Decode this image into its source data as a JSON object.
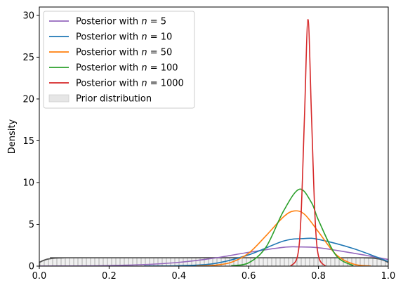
{
  "chart_data": {
    "type": "line",
    "title": "",
    "xlabel": "",
    "ylabel": "Density",
    "xlim": [
      0.0,
      1.0
    ],
    "ylim": [
      0,
      31
    ],
    "xticks": [
      0.0,
      0.2,
      0.4,
      0.6,
      0.8,
      1.0
    ],
    "xtick_labels": [
      "0.0",
      "0.2",
      "0.4",
      "0.6",
      "0.8",
      "1.0"
    ],
    "yticks": [
      0,
      5,
      10,
      15,
      20,
      25,
      30
    ],
    "ytick_labels": [
      "0",
      "5",
      "10",
      "15",
      "20",
      "25",
      "30"
    ],
    "grid": false,
    "legend_position": "top-left",
    "series": [
      {
        "name_prefix": "Posterior with ",
        "n_symbol": "n",
        "n_value": "= 5",
        "color": "#9467bd",
        "peak_x": 0.74,
        "peak_y": 2.3,
        "x": [
          0.0,
          0.1,
          0.2,
          0.3,
          0.4,
          0.5,
          0.6,
          0.7,
          0.74,
          0.8,
          0.9,
          1.0
        ],
        "y": [
          0.01,
          0.02,
          0.06,
          0.18,
          0.45,
          0.95,
          1.65,
          2.25,
          2.3,
          2.2,
          1.55,
          0.8
        ]
      },
      {
        "name_prefix": "Posterior with ",
        "n_symbol": "n",
        "n_value": "= 10",
        "color": "#1f77b4",
        "peak_x": 0.76,
        "peak_y": 3.3,
        "x": [
          0.3,
          0.4,
          0.5,
          0.6,
          0.7,
          0.76,
          0.8,
          0.9,
          1.0
        ],
        "y": [
          0.01,
          0.05,
          0.3,
          1.35,
          3.0,
          3.3,
          3.2,
          2.1,
          0.55
        ]
      },
      {
        "name_prefix": "Posterior with ",
        "n_symbol": "n",
        "n_value": "= 50",
        "color": "#ff7f0e",
        "peak_x": 0.73,
        "peak_y": 6.6,
        "x": [
          0.45,
          0.5,
          0.55,
          0.6,
          0.65,
          0.7,
          0.73,
          0.76,
          0.8,
          0.85,
          0.9,
          0.95
        ],
        "y": [
          0.02,
          0.1,
          0.45,
          1.55,
          3.65,
          5.9,
          6.6,
          6.2,
          4.1,
          1.4,
          0.25,
          0.01
        ]
      },
      {
        "name_prefix": "Posterior with ",
        "n_symbol": "n",
        "n_value": "= 100",
        "color": "#2ca02c",
        "peak_x": 0.745,
        "peak_y": 9.2,
        "x": [
          0.55,
          0.6,
          0.65,
          0.7,
          0.745,
          0.78,
          0.8,
          0.85,
          0.9
        ],
        "y": [
          0.05,
          0.4,
          2.3,
          6.6,
          9.2,
          7.6,
          5.5,
          1.3,
          0.05
        ]
      },
      {
        "name_prefix": "Posterior with ",
        "n_symbol": "n",
        "n_value": "= 1000",
        "color": "#d62728",
        "peak_x": 0.77,
        "peak_y": 29.5,
        "x": [
          0.72,
          0.74,
          0.75,
          0.76,
          0.77,
          0.78,
          0.79,
          0.8,
          0.82
        ],
        "y": [
          0.01,
          1.2,
          6.0,
          18.0,
          29.5,
          18.0,
          6.0,
          1.2,
          0.01
        ]
      }
    ],
    "prior": {
      "name": "Prior distribution",
      "fill_color": "#d9d9d9",
      "line_color": "#555555",
      "x": [
        0.0,
        0.01,
        0.02,
        0.03,
        0.04,
        0.05,
        0.07,
        0.1,
        0.9,
        0.93,
        0.95,
        0.96,
        0.97,
        0.98,
        0.99,
        1.0
      ],
      "y": [
        0.45,
        0.65,
        0.8,
        0.88,
        0.94,
        0.97,
        0.99,
        1.0,
        1.0,
        0.99,
        0.97,
        0.94,
        0.88,
        0.8,
        0.65,
        0.45
      ]
    }
  }
}
